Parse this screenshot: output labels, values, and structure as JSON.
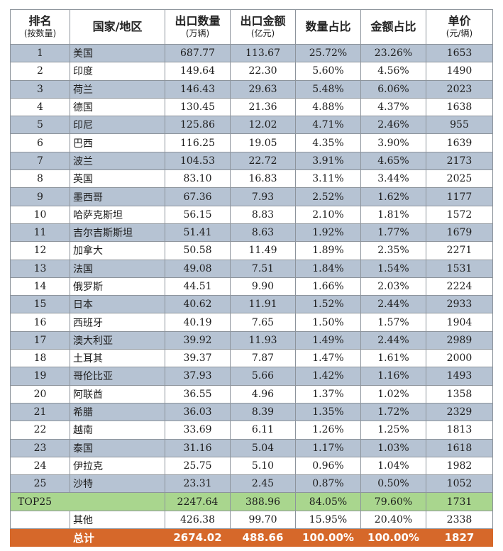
{
  "headers": {
    "rank": {
      "main": "排名",
      "sub": "(按数量)"
    },
    "country": {
      "main": "国家/地区"
    },
    "volume": {
      "main": "出口数量",
      "sub": "(万辆)"
    },
    "amount": {
      "main": "出口金额",
      "sub": "(亿元)"
    },
    "volume_share": {
      "main": "数量占比"
    },
    "amount_share": {
      "main": "金额占比"
    },
    "unit_price": {
      "main": "单价",
      "sub": "(元/辆)"
    }
  },
  "rows": [
    {
      "rank": "1",
      "country": "美国",
      "volume": "687.77",
      "amount": "113.67",
      "volume_share": "25.72%",
      "amount_share": "23.26%",
      "unit_price": "1653"
    },
    {
      "rank": "2",
      "country": "印度",
      "volume": "149.64",
      "amount": "22.30",
      "volume_share": "5.60%",
      "amount_share": "4.56%",
      "unit_price": "1490"
    },
    {
      "rank": "3",
      "country": "荷兰",
      "volume": "146.43",
      "amount": "29.63",
      "volume_share": "5.48%",
      "amount_share": "6.06%",
      "unit_price": "2023"
    },
    {
      "rank": "4",
      "country": "德国",
      "volume": "130.45",
      "amount": "21.36",
      "volume_share": "4.88%",
      "amount_share": "4.37%",
      "unit_price": "1638"
    },
    {
      "rank": "5",
      "country": "印尼",
      "volume": "125.86",
      "amount": "12.02",
      "volume_share": "4.71%",
      "amount_share": "2.46%",
      "unit_price": "955"
    },
    {
      "rank": "6",
      "country": "巴西",
      "volume": "116.25",
      "amount": "19.05",
      "volume_share": "4.35%",
      "amount_share": "3.90%",
      "unit_price": "1639"
    },
    {
      "rank": "7",
      "country": "波兰",
      "volume": "104.53",
      "amount": "22.72",
      "volume_share": "3.91%",
      "amount_share": "4.65%",
      "unit_price": "2173"
    },
    {
      "rank": "8",
      "country": "英国",
      "volume": "83.10",
      "amount": "16.83",
      "volume_share": "3.11%",
      "amount_share": "3.44%",
      "unit_price": "2025"
    },
    {
      "rank": "9",
      "country": "墨西哥",
      "volume": "67.36",
      "amount": "7.93",
      "volume_share": "2.52%",
      "amount_share": "1.62%",
      "unit_price": "1177"
    },
    {
      "rank": "10",
      "country": "哈萨克斯坦",
      "volume": "56.15",
      "amount": "8.83",
      "volume_share": "2.10%",
      "amount_share": "1.81%",
      "unit_price": "1572"
    },
    {
      "rank": "11",
      "country": "吉尔吉斯斯坦",
      "volume": "51.41",
      "amount": "8.63",
      "volume_share": "1.92%",
      "amount_share": "1.77%",
      "unit_price": "1679"
    },
    {
      "rank": "12",
      "country": "加拿大",
      "volume": "50.58",
      "amount": "11.49",
      "volume_share": "1.89%",
      "amount_share": "2.35%",
      "unit_price": "2271"
    },
    {
      "rank": "13",
      "country": "法国",
      "volume": "49.08",
      "amount": "7.51",
      "volume_share": "1.84%",
      "amount_share": "1.54%",
      "unit_price": "1531"
    },
    {
      "rank": "14",
      "country": "俄罗斯",
      "volume": "44.51",
      "amount": "9.90",
      "volume_share": "1.66%",
      "amount_share": "2.03%",
      "unit_price": "2224"
    },
    {
      "rank": "15",
      "country": "日本",
      "volume": "40.62",
      "amount": "11.91",
      "volume_share": "1.52%",
      "amount_share": "2.44%",
      "unit_price": "2933"
    },
    {
      "rank": "16",
      "country": "西班牙",
      "volume": "40.19",
      "amount": "7.65",
      "volume_share": "1.50%",
      "amount_share": "1.57%",
      "unit_price": "1904"
    },
    {
      "rank": "17",
      "country": "澳大利亚",
      "volume": "39.92",
      "amount": "11.93",
      "volume_share": "1.49%",
      "amount_share": "2.44%",
      "unit_price": "2989"
    },
    {
      "rank": "18",
      "country": "土耳其",
      "volume": "39.37",
      "amount": "7.87",
      "volume_share": "1.47%",
      "amount_share": "1.61%",
      "unit_price": "2000"
    },
    {
      "rank": "19",
      "country": "哥伦比亚",
      "volume": "37.93",
      "amount": "5.66",
      "volume_share": "1.42%",
      "amount_share": "1.16%",
      "unit_price": "1493"
    },
    {
      "rank": "20",
      "country": "阿联酋",
      "volume": "36.55",
      "amount": "4.96",
      "volume_share": "1.37%",
      "amount_share": "1.02%",
      "unit_price": "1358"
    },
    {
      "rank": "21",
      "country": "希腊",
      "volume": "36.03",
      "amount": "8.39",
      "volume_share": "1.35%",
      "amount_share": "1.72%",
      "unit_price": "2329"
    },
    {
      "rank": "22",
      "country": "越南",
      "volume": "33.69",
      "amount": "6.11",
      "volume_share": "1.26%",
      "amount_share": "1.25%",
      "unit_price": "1813"
    },
    {
      "rank": "23",
      "country": "泰国",
      "volume": "31.16",
      "amount": "5.04",
      "volume_share": "1.17%",
      "amount_share": "1.03%",
      "unit_price": "1618"
    },
    {
      "rank": "24",
      "country": "伊拉克",
      "volume": "25.75",
      "amount": "5.10",
      "volume_share": "0.96%",
      "amount_share": "1.04%",
      "unit_price": "1982"
    },
    {
      "rank": "25",
      "country": "沙特",
      "volume": "23.31",
      "amount": "2.45",
      "volume_share": "0.87%",
      "amount_share": "0.50%",
      "unit_price": "1052"
    }
  ],
  "top25": {
    "label": "TOP25",
    "volume": "2247.64",
    "amount": "388.96",
    "volume_share": "84.05%",
    "amount_share": "79.60%",
    "unit_price": "1731"
  },
  "others": {
    "label": "其他",
    "volume": "426.38",
    "amount": "99.70",
    "volume_share": "15.95%",
    "amount_share": "20.40%",
    "unit_price": "2338"
  },
  "total": {
    "label": "总计",
    "volume": "2674.02",
    "amount": "488.66",
    "volume_share": "100.00%",
    "amount_share": "100.00%",
    "unit_price": "1827"
  },
  "colors": {
    "alt_row": "#b6c3d3",
    "top25_row": "#a9d68e",
    "total_row": "#d6682a"
  }
}
